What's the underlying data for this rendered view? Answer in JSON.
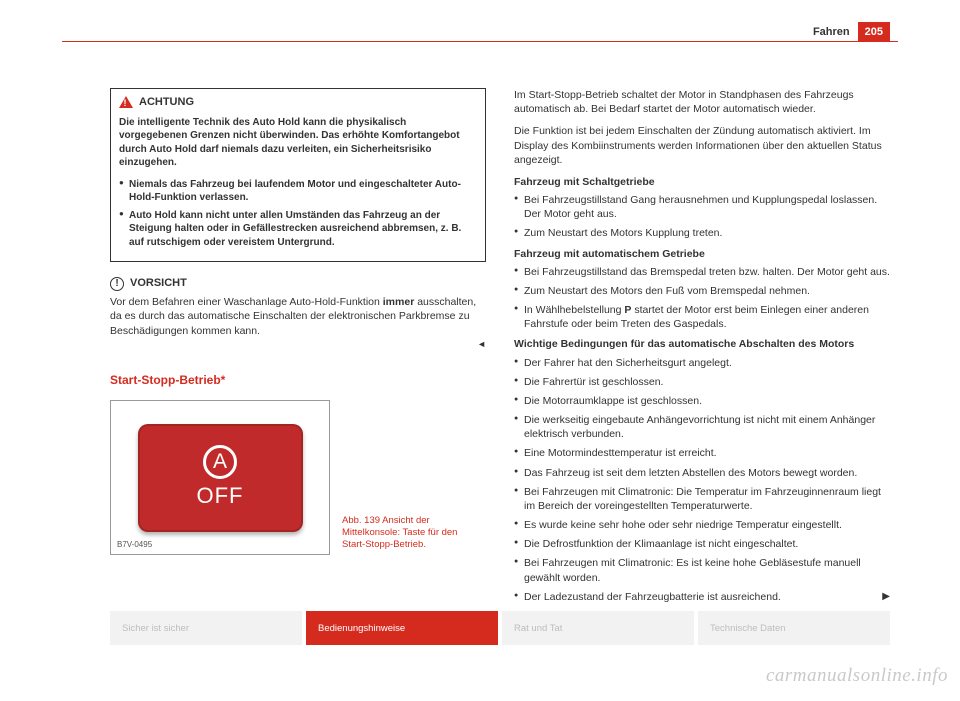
{
  "header": {
    "section": "Fahren",
    "page": "205"
  },
  "warning": {
    "title": "ACHTUNG",
    "intro": "Die intelligente Technik des Auto Hold kann die physikalisch vorgegebenen Grenzen nicht überwinden. Das erhöhte Komfortangebot durch Auto Hold darf niemals dazu verleiten, ein Sicherheitsrisiko einzugehen.",
    "items": [
      "Niemals das Fahrzeug bei laufendem Motor und eingeschalteter Auto-Hold-Funktion verlassen.",
      "Auto Hold kann nicht unter allen Umständen das Fahrzeug an der Steigung halten oder in Gefällestrecken ausreichend abbremsen, z. B. auf rutschigem oder vereistem Untergrund."
    ]
  },
  "caution": {
    "title": "VORSICHT",
    "text_a": "Vor dem Befahren einer Waschanlage Auto-Hold-Funktion ",
    "text_bold": "immer",
    "text_b": " ausschalten, da es durch das automatische Einschalten der elektronischen Parkbremse zu Beschädigungen kommen kann."
  },
  "section_title": "Start-Stopp-Betrieb*",
  "figure": {
    "a": "A",
    "off": "OFF",
    "code": "B7V-0495",
    "caption": "Abb. 139  Ansicht der Mittelkonsole: Taste für den Start-Stopp-Betrieb."
  },
  "right": {
    "p1": "Im Start-Stopp-Betrieb schaltet der Motor in Standphasen des Fahrzeugs automatisch ab. Bei Bedarf startet der Motor automatisch wieder.",
    "p2": "Die Funktion ist bei jedem Einschalten der Zündung automatisch aktiviert. Im Display des Kombiinstruments werden Informationen über den aktuellen Status angezeigt.",
    "h1": "Fahrzeug mit Schaltgetriebe",
    "l1": [
      "Bei Fahrzeugstillstand Gang herausnehmen und Kupplungspedal loslassen. Der Motor geht aus.",
      "Zum Neustart des Motors Kupplung treten."
    ],
    "h2": "Fahrzeug mit automatischem Getriebe",
    "l2_a": "Bei Fahrzeugstillstand das Bremspedal treten bzw. halten. Der Motor geht aus.",
    "l2_b": "Zum Neustart des Motors den Fuß vom Bremspedal nehmen.",
    "l2_c_a": "In Wählhebelstellung ",
    "l2_c_bold": "P",
    "l2_c_b": " startet der Motor erst beim Einlegen einer anderen Fahrstufe oder beim Treten des Gaspedals.",
    "h3": "Wichtige Bedingungen für das automatische Abschalten des Motors",
    "l3": [
      "Der Fahrer hat den Sicherheitsgurt angelegt.",
      "Die Fahrertür ist geschlossen.",
      "Die Motorraumklappe ist geschlossen.",
      "Die werkseitig eingebaute Anhängevorrichtung ist nicht mit einem Anhänger elektrisch verbunden.",
      "Eine Motormindesttemperatur ist erreicht.",
      "Das Fahrzeug ist seit dem letzten Abstellen des Motors bewegt worden.",
      "Bei Fahrzeugen mit Climatronic: Die Temperatur im Fahrzeuginnenraum liegt im Bereich der voreingestellten Temperaturwerte.",
      "Es wurde keine sehr hohe oder sehr niedrige Temperatur eingestellt.",
      "Die Defrostfunktion der Klimaanlage ist nicht eingeschaltet.",
      "Bei Fahrzeugen mit Climatronic: Es ist keine hohe Gebläsestufe manuell gewählt worden.",
      "Der Ladezustand der Fahrzeugbatterie ist ausreichend."
    ]
  },
  "tabs": [
    "Sicher ist sicher",
    "Bedienungshinweise",
    "Rat und Tat",
    "Technische Daten"
  ],
  "watermark": "carmanualsonline.info",
  "colors": {
    "brand": "#d52b1e",
    "button": "#c12a2a"
  }
}
